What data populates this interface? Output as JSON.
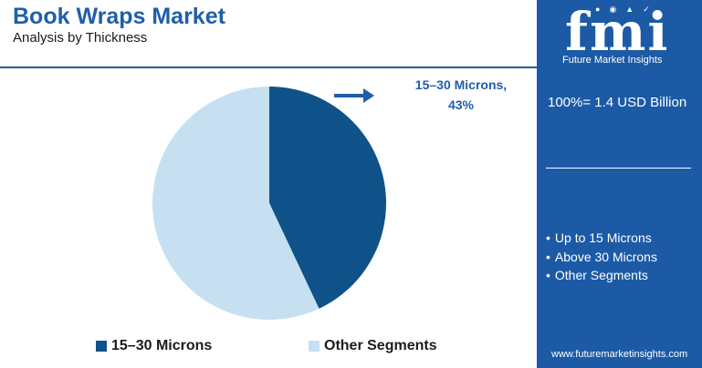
{
  "header": {
    "title": "Book Wraps Market",
    "subtitle": "Analysis by Thickness"
  },
  "callout": {
    "line1": "15–30 Microns,",
    "line2": "43%"
  },
  "chart_data": {
    "type": "pie",
    "slices": [
      {
        "label": "15–30 Microns",
        "value": 43,
        "color": "#0e5289"
      },
      {
        "label": "Other Segments",
        "value": 57,
        "color": "#c6e0f2"
      }
    ],
    "legend_position": "bottom"
  },
  "legend": {
    "items": [
      {
        "label": "15–30 Microns",
        "color": "#0e5289"
      },
      {
        "label": "Other Segments",
        "color": "#c6e0f2"
      }
    ]
  },
  "panel": {
    "logo_text": "fmi",
    "logo_subtitle": "Future Market Insights",
    "total": "100%= 1.4 USD Billion",
    "other_segments": [
      "Up to 15 Microns",
      "Above 30 Microns",
      "Other Segments"
    ],
    "website": "www.futuremarketinsights.com",
    "background": "#1c5aa6"
  }
}
